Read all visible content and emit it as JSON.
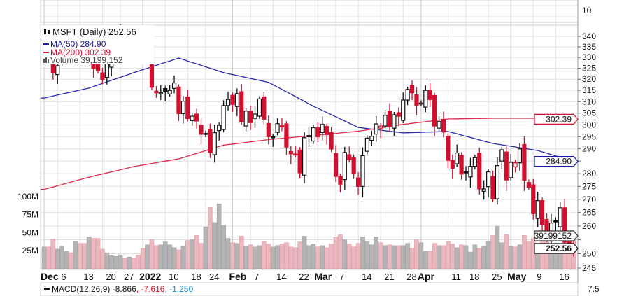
{
  "chart_data": {
    "type": "candlestick",
    "title": "MSFT (Daily)",
    "last_price": "252.56",
    "legend": [
      {
        "label": "MSFT (Daily) 252.56",
        "color": "#111111"
      },
      {
        "label": "MA(50) 284.90",
        "color": "#1a1aa0"
      },
      {
        "label": "MA(200) 302.39",
        "color": "#d0102e"
      },
      {
        "label": "Volume 39,199,152",
        "color": "#444444"
      }
    ],
    "legend_placement": "top-left",
    "price_ticks": [
      340,
      335,
      330,
      325,
      320,
      315,
      310,
      305,
      300,
      295,
      290,
      285,
      280,
      275,
      270,
      265,
      260,
      255,
      250,
      245
    ],
    "price_axis_labels": [
      "340",
      "335",
      "330",
      "325",
      "320",
      "315",
      "310",
      "305",
      "300",
      "295",
      "290",
      "",
      "280",
      "275",
      "270",
      "265",
      "260",
      "",
      "250",
      "245"
    ],
    "price_scale": "log",
    "volume_ticks": [
      {
        "label": "100M",
        "value": 100
      },
      {
        "label": "75M",
        "value": 75
      },
      {
        "label": "50M",
        "value": 50
      },
      {
        "label": "25M",
        "value": 25
      }
    ],
    "upper_panel_label": "10",
    "lower_panel_label": "7.5",
    "markers": {
      "ma200": "302.39",
      "ma50": "284.90",
      "volume": "39199152",
      "price": "252.56"
    },
    "date_labels": [
      {
        "label": "Dec",
        "idx": 0,
        "bold": true
      },
      {
        "label": "6",
        "idx": 3
      },
      {
        "label": "13",
        "idx": 8
      },
      {
        "label": "20",
        "idx": 13
      },
      {
        "label": "27",
        "idx": 17
      },
      {
        "label": "2022",
        "idx": 22,
        "bold": true
      },
      {
        "label": "10",
        "idx": 27
      },
      {
        "label": "18",
        "idx": 32
      },
      {
        "label": "24",
        "idx": 36
      },
      {
        "label": "Feb",
        "idx": 42,
        "bold": true
      },
      {
        "label": "7",
        "idx": 46
      },
      {
        "label": "14",
        "idx": 51
      },
      {
        "label": "22",
        "idx": 56
      },
      {
        "label": "Mar",
        "idx": 61,
        "bold": true
      },
      {
        "label": "7",
        "idx": 65
      },
      {
        "label": "14",
        "idx": 70
      },
      {
        "label": "21",
        "idx": 75
      },
      {
        "label": "28",
        "idx": 80
      },
      {
        "label": "Apr",
        "idx": 84,
        "bold": true
      },
      {
        "label": "11",
        "idx": 90
      },
      {
        "label": "18",
        "idx": 94
      },
      {
        "label": "25",
        "idx": 99
      },
      {
        "label": "May",
        "idx": 104,
        "bold": true
      },
      {
        "label": "9",
        "idx": 109
      },
      {
        "label": "16",
        "idx": 114
      }
    ],
    "closes": [
      330.1,
      329.5,
      323.0,
      326.2,
      334.9,
      334.97,
      333.1,
      342.5,
      339.4,
      334.6,
      339.4,
      324.9,
      323.8,
      319.9,
      327.3,
      333.2,
      334.7,
      342.5,
      341.3,
      341.9,
      339.3,
      336.3,
      334.8,
      335.0,
      316.4,
      313.9,
      314.0,
      314.3,
      314.98,
      318.3,
      304.8,
      310.2,
      302.7,
      303.7,
      301.6,
      296.0,
      296.4,
      288.5,
      296.7,
      299.8,
      308.3,
      310.98,
      308.8,
      313.5,
      301.3,
      305.9,
      300.95,
      304.6,
      311.2,
      302.4,
      295.0,
      295.0,
      300.5,
      299.5,
      290.7,
      287.9,
      287.7,
      280.3,
      294.6,
      295.0,
      298.8,
      294.95,
      300.2,
      295.9,
      289.9,
      278.9,
      275.85,
      288.5,
      285.6,
      280.1,
      275.0,
      287.2,
      294.4,
      295.2,
      300.4,
      299.5,
      304.1,
      299.5,
      304.3,
      303.7,
      310.7,
      315.4,
      313.9,
      308.3,
      309.4,
      314.97,
      310.9,
      299.5,
      301.4,
      296.97,
      285.3,
      282.1,
      288.3,
      279.8,
      280.5,
      282.9,
      286.4,
      274.0,
      274.0,
      280.7,
      270.2,
      283.2,
      289.6,
      277.5,
      284.5,
      284.3,
      289.98,
      277.4,
      274.7,
      264.6,
      269.5,
      260.6,
      255.4,
      261.1,
      261.5,
      266.8,
      254.1,
      253.1,
      252.56
    ],
    "volumes_millions": [
      30,
      30,
      41,
      27,
      31,
      24,
      22,
      38,
      35,
      35,
      44,
      42,
      42,
      27,
      22,
      18,
      17,
      19,
      15,
      16,
      15,
      19,
      28,
      33,
      40,
      32,
      33,
      37,
      33,
      29,
      26,
      31,
      39,
      40,
      46,
      35,
      58,
      85,
      64,
      90,
      60,
      42,
      36,
      35,
      45,
      31,
      33,
      30,
      32,
      38,
      34,
      30,
      32,
      34,
      36,
      30,
      29,
      37,
      45,
      32,
      34,
      30,
      32,
      29,
      34,
      44,
      47,
      40,
      34,
      30,
      35,
      44,
      38,
      33,
      44,
      36,
      32,
      33,
      32,
      32,
      32,
      35,
      28,
      40,
      36,
      24,
      24,
      35,
      32,
      32,
      38,
      34,
      29,
      33,
      32,
      23,
      33,
      28,
      31,
      38,
      46,
      59,
      36,
      47,
      31,
      30,
      33,
      46,
      38,
      42,
      32,
      44,
      40,
      29,
      23,
      28,
      35,
      33,
      39.2
    ],
    "ma50_samples": {
      "idx": [
        0,
        10,
        20,
        30,
        40,
        50,
        60,
        70,
        80,
        90,
        100,
        110,
        118
      ],
      "values": [
        311.6,
        316,
        323,
        329.7,
        323,
        318.6,
        308,
        298.9,
        296.6,
        297.2,
        292.2,
        289.3,
        284.9
      ]
    },
    "ma200_samples": {
      "idx": [
        0,
        10,
        20,
        30,
        40,
        50,
        60,
        70,
        80,
        90,
        100,
        110,
        118
      ],
      "values": [
        273.8,
        278.6,
        282.8,
        285.9,
        291.5,
        293.8,
        295.5,
        297.3,
        300.2,
        302.5,
        302.8,
        302.8,
        302.39
      ]
    },
    "macd": {
      "label": "MACD(12,26,9)",
      "macd": "-8.866",
      "signal": ", -7.616",
      "hist": ", -1.250"
    }
  },
  "colors": {
    "up": "#111111",
    "down": "#d0102e",
    "ma50": "#2a2aa8",
    "ma200": "#e0284a",
    "vol_up": "#b4b4b4",
    "vol_down": "#eab8bf",
    "grid": "#e0e0e0"
  }
}
